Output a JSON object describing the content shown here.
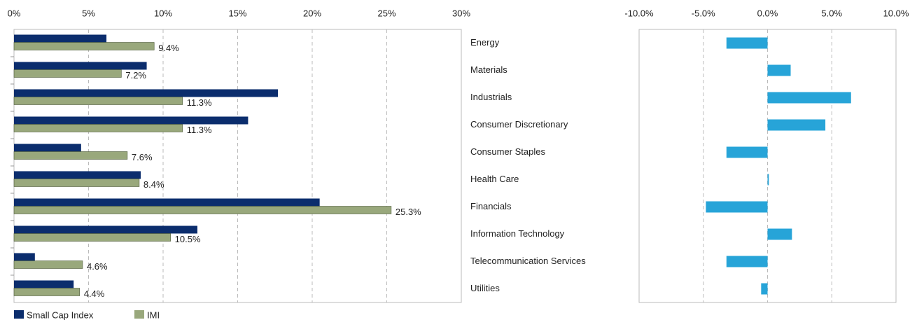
{
  "chart_data": [
    {
      "type": "hbar_grouped",
      "categories": [
        "Energy",
        "Materials",
        "Industrials",
        "Consumer Discretionary",
        "Consumer Staples",
        "Health Care",
        "Financials",
        "Information Technology",
        "Telecommunication Services",
        "Utilities"
      ],
      "series": [
        {
          "name": "Small Cap Index",
          "color": "#0b2d6d",
          "values": [
            6.2,
            8.9,
            17.7,
            15.7,
            4.5,
            8.5,
            20.5,
            12.3,
            1.4,
            4.0
          ]
        },
        {
          "name": "IMI",
          "color": "#99a87c",
          "values": [
            9.4,
            7.2,
            11.3,
            11.3,
            7.6,
            8.4,
            25.3,
            10.5,
            4.6,
            4.4
          ],
          "value_labels": [
            "9.4%",
            "7.2%",
            "11.3%",
            "11.3%",
            "7.6%",
            "8.4%",
            "25.3%",
            "10.5%",
            "4.6%",
            "4.4%"
          ]
        }
      ],
      "xlim": [
        0,
        30
      ],
      "xticks": [
        {
          "value": 0,
          "label": "0%"
        },
        {
          "value": 5,
          "label": "5%"
        },
        {
          "value": 10,
          "label": "10%"
        },
        {
          "value": 15,
          "label": "15%"
        },
        {
          "value": 20,
          "label": "20%"
        },
        {
          "value": 25,
          "label": "25%"
        },
        {
          "value": 30,
          "label": "30%"
        }
      ],
      "grid": true
    },
    {
      "type": "hbar_diverging",
      "color": "#27a4d8",
      "values": [
        -3.2,
        1.8,
        6.5,
        4.5,
        -3.2,
        0.1,
        -4.8,
        1.9,
        -3.2,
        -0.5
      ],
      "xlim": [
        -10,
        10
      ],
      "xticks": [
        {
          "value": -10,
          "label": "-10.0%"
        },
        {
          "value": -5,
          "label": "-5.0%"
        },
        {
          "value": 0,
          "label": "0.0%"
        },
        {
          "value": 5,
          "label": "5.0%"
        },
        {
          "value": 10,
          "label": "10.0%"
        }
      ],
      "grid": true
    }
  ]
}
